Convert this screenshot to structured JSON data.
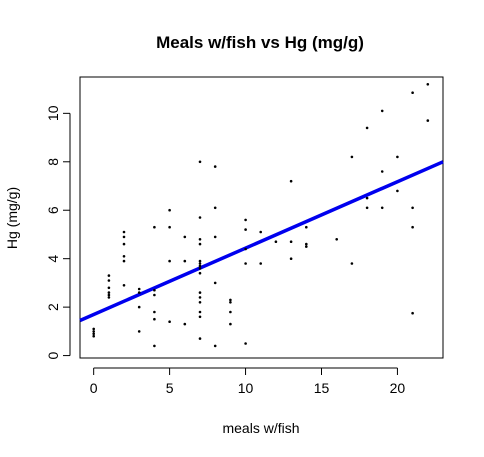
{
  "chart_data": {
    "type": "scatter",
    "title": "Meals w/fish vs Hg (mg/g)",
    "xlabel": "meals w/fish",
    "ylabel": "Hg (mg/g)",
    "xlim": [
      -0.9,
      23
    ],
    "ylim": [
      -0.1,
      11.5
    ],
    "x_ticks": [
      0,
      5,
      10,
      15,
      20
    ],
    "y_ticks": [
      0,
      2,
      4,
      6,
      8,
      10
    ],
    "grid": false,
    "legend": "none",
    "point_color": "#000000",
    "points": [
      {
        "x": 0,
        "y": 0.8
      },
      {
        "x": 0,
        "y": 0.9
      },
      {
        "x": 0,
        "y": 1.0
      },
      {
        "x": 0,
        "y": 1.1
      },
      {
        "x": 1,
        "y": 2.4
      },
      {
        "x": 1,
        "y": 2.5
      },
      {
        "x": 1,
        "y": 2.6
      },
      {
        "x": 1,
        "y": 2.8
      },
      {
        "x": 1,
        "y": 3.1
      },
      {
        "x": 1,
        "y": 3.3
      },
      {
        "x": 2,
        "y": 2.9
      },
      {
        "x": 2,
        "y": 3.9
      },
      {
        "x": 2,
        "y": 4.1
      },
      {
        "x": 2,
        "y": 4.6
      },
      {
        "x": 2,
        "y": 4.9
      },
      {
        "x": 2,
        "y": 5.1
      },
      {
        "x": 3,
        "y": 1.0
      },
      {
        "x": 3,
        "y": 2.0
      },
      {
        "x": 3,
        "y": 2.6
      },
      {
        "x": 3,
        "y": 2.75
      },
      {
        "x": 4,
        "y": 0.4
      },
      {
        "x": 4,
        "y": 1.5
      },
      {
        "x": 4,
        "y": 1.8
      },
      {
        "x": 4,
        "y": 2.5
      },
      {
        "x": 4,
        "y": 2.7
      },
      {
        "x": 4,
        "y": 5.3
      },
      {
        "x": 5,
        "y": 1.4
      },
      {
        "x": 5,
        "y": 3.9
      },
      {
        "x": 5,
        "y": 5.3
      },
      {
        "x": 5,
        "y": 6.0
      },
      {
        "x": 6,
        "y": 1.3
      },
      {
        "x": 6,
        "y": 3.9
      },
      {
        "x": 6,
        "y": 4.9
      },
      {
        "x": 7,
        "y": 0.7
      },
      {
        "x": 7,
        "y": 1.6
      },
      {
        "x": 7,
        "y": 1.8
      },
      {
        "x": 7,
        "y": 2.2
      },
      {
        "x": 7,
        "y": 2.4
      },
      {
        "x": 7,
        "y": 2.6
      },
      {
        "x": 7,
        "y": 3.4
      },
      {
        "x": 7,
        "y": 3.6
      },
      {
        "x": 7,
        "y": 3.7
      },
      {
        "x": 7,
        "y": 3.8
      },
      {
        "x": 7,
        "y": 3.9
      },
      {
        "x": 7,
        "y": 4.6
      },
      {
        "x": 7,
        "y": 4.8
      },
      {
        "x": 7,
        "y": 5.7
      },
      {
        "x": 7,
        "y": 8.0
      },
      {
        "x": 8,
        "y": 0.4
      },
      {
        "x": 8,
        "y": 3.0
      },
      {
        "x": 8,
        "y": 4.9
      },
      {
        "x": 8,
        "y": 6.1
      },
      {
        "x": 8,
        "y": 7.8
      },
      {
        "x": 9,
        "y": 1.3
      },
      {
        "x": 9,
        "y": 1.8
      },
      {
        "x": 9,
        "y": 2.2
      },
      {
        "x": 9,
        "y": 2.3
      },
      {
        "x": 10,
        "y": 0.5
      },
      {
        "x": 10,
        "y": 3.8
      },
      {
        "x": 10,
        "y": 4.4
      },
      {
        "x": 10,
        "y": 5.2
      },
      {
        "x": 10,
        "y": 5.6
      },
      {
        "x": 11,
        "y": 3.8
      },
      {
        "x": 11,
        "y": 5.1
      },
      {
        "x": 12,
        "y": 4.7
      },
      {
        "x": 13,
        "y": 4.0
      },
      {
        "x": 13,
        "y": 4.7
      },
      {
        "x": 13,
        "y": 7.2
      },
      {
        "x": 14,
        "y": 4.5
      },
      {
        "x": 14,
        "y": 4.6
      },
      {
        "x": 14,
        "y": 5.3
      },
      {
        "x": 16,
        "y": 4.8
      },
      {
        "x": 17,
        "y": 3.8
      },
      {
        "x": 17,
        "y": 8.2
      },
      {
        "x": 18,
        "y": 6.1
      },
      {
        "x": 18,
        "y": 6.5
      },
      {
        "x": 18,
        "y": 9.4
      },
      {
        "x": 19,
        "y": 6.1
      },
      {
        "x": 19,
        "y": 7.6
      },
      {
        "x": 19,
        "y": 10.1
      },
      {
        "x": 20,
        "y": 6.8
      },
      {
        "x": 20,
        "y": 8.2
      },
      {
        "x": 21,
        "y": 1.75
      },
      {
        "x": 21,
        "y": 5.3
      },
      {
        "x": 21,
        "y": 6.1
      },
      {
        "x": 21,
        "y": 10.85
      },
      {
        "x": 22,
        "y": 9.7
      },
      {
        "x": 22,
        "y": 11.2
      }
    ],
    "regression_line": {
      "color": "#0000ee",
      "x": [
        -0.9,
        23
      ],
      "y": [
        1.45,
        8.0
      ]
    }
  }
}
